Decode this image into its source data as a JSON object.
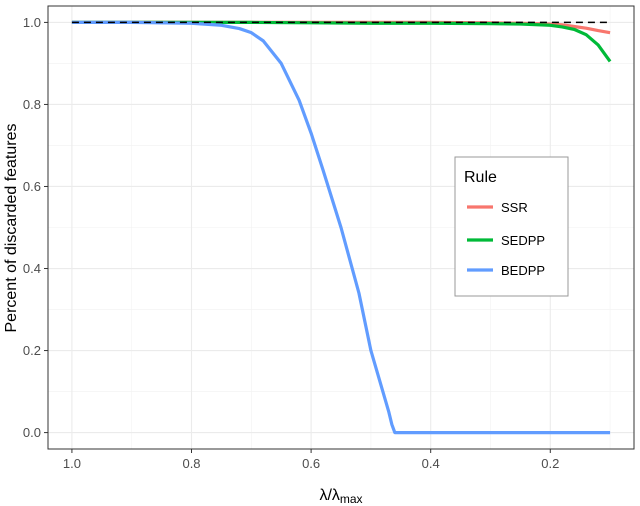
{
  "chart_data": {
    "type": "line",
    "title": "",
    "xlabel": "λ/λ",
    "xlabel_sub": "max",
    "ylabel": "Percent of discarded features",
    "xlim": [
      1.04,
      0.06
    ],
    "x_reversed": true,
    "ylim": [
      -0.04,
      1.04
    ],
    "x_ticks": [
      1.0,
      0.8,
      0.6,
      0.4,
      0.2
    ],
    "x_tick_labels": [
      "1.0",
      "0.8",
      "0.6",
      "0.4",
      "0.2"
    ],
    "y_ticks": [
      0.0,
      0.2,
      0.4,
      0.6,
      0.8,
      1.0
    ],
    "y_tick_labels": [
      "0.0",
      "0.2",
      "0.4",
      "0.6",
      "0.8",
      "1.0"
    ],
    "grid": true,
    "reference_line": {
      "y": 1.0,
      "style": "dashed",
      "color": "#000000"
    },
    "legend": {
      "title": "Rule",
      "placement": "right"
    },
    "series": [
      {
        "name": "SSR",
        "color": "#F8766D",
        "x": [
          1.0,
          0.9,
          0.8,
          0.7,
          0.6,
          0.5,
          0.4,
          0.3,
          0.25,
          0.2,
          0.18,
          0.16,
          0.14,
          0.12,
          0.1
        ],
        "y": [
          1.0,
          1.0,
          1.0,
          1.0,
          1.0,
          1.0,
          1.0,
          0.999,
          0.998,
          0.996,
          0.994,
          0.99,
          0.986,
          0.98,
          0.975
        ]
      },
      {
        "name": "SEDPP",
        "color": "#00BA38",
        "x": [
          1.0,
          0.9,
          0.8,
          0.7,
          0.6,
          0.5,
          0.4,
          0.3,
          0.25,
          0.2,
          0.18,
          0.16,
          0.14,
          0.12,
          0.1
        ],
        "y": [
          1.0,
          1.0,
          1.0,
          1.0,
          0.999,
          0.998,
          0.998,
          0.997,
          0.996,
          0.993,
          0.989,
          0.983,
          0.97,
          0.945,
          0.905
        ]
      },
      {
        "name": "BEDPP",
        "color": "#619CFF",
        "x": [
          1.0,
          0.9,
          0.8,
          0.75,
          0.72,
          0.7,
          0.68,
          0.65,
          0.62,
          0.6,
          0.58,
          0.55,
          0.52,
          0.5,
          0.48,
          0.47,
          0.465,
          0.46,
          0.45,
          0.4,
          0.3,
          0.2,
          0.1
        ],
        "y": [
          1.0,
          1.0,
          0.998,
          0.993,
          0.985,
          0.975,
          0.955,
          0.9,
          0.81,
          0.73,
          0.64,
          0.5,
          0.34,
          0.2,
          0.1,
          0.05,
          0.02,
          0.0,
          0.0,
          0.0,
          0.0,
          0.0,
          0.0
        ]
      }
    ]
  }
}
